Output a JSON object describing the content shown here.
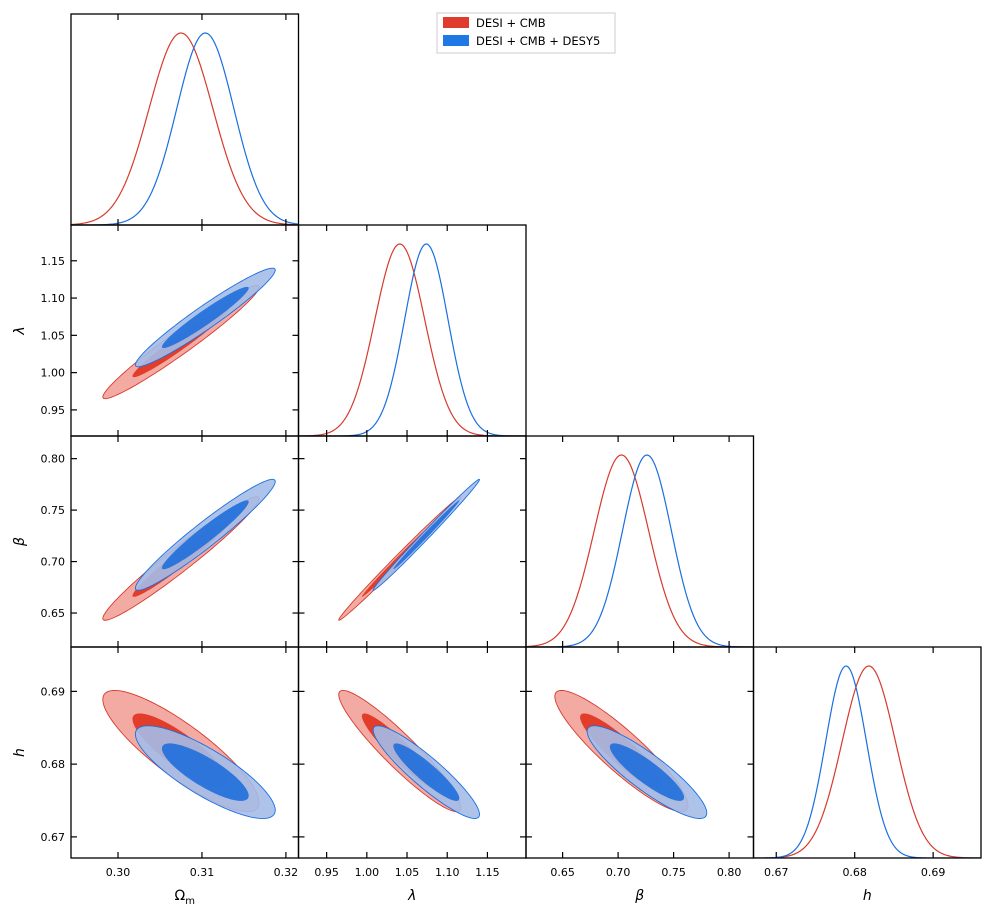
{
  "chart_data": {
    "type": "triangle-corner-plot",
    "parameters": [
      {
        "id": "om",
        "label": "Ω",
        "sub": "m",
        "ticks": [
          "0.30",
          "0.31",
          "0.32"
        ],
        "tick_values": [
          0.3,
          0.31,
          0.32
        ],
        "range": [
          0.2944,
          0.3215
        ]
      },
      {
        "id": "lam",
        "label": "λ",
        "ticks": [
          "0.95",
          "1.00",
          "1.05",
          "1.10",
          "1.15"
        ],
        "tick_values": [
          0.95,
          1.0,
          1.05,
          1.1,
          1.15
        ],
        "range": [
          0.915,
          1.198
        ]
      },
      {
        "id": "beta",
        "label": "β",
        "ticks": [
          "0.65",
          "0.70",
          "0.75",
          "0.80"
        ],
        "tick_values": [
          0.65,
          0.7,
          0.75,
          0.8
        ],
        "range": [
          0.617,
          0.822
        ]
      },
      {
        "id": "h",
        "label": "h",
        "ticks": [
          "0.67",
          "0.68",
          "0.69"
        ],
        "tick_values": [
          0.67,
          0.68,
          0.69
        ],
        "range": [
          0.6671,
          0.6961
        ]
      }
    ],
    "legend": [
      {
        "label": "DESI + CMB",
        "color": "#e03c2e"
      },
      {
        "label": "DESI + CMB + DESY5",
        "color": "#1e78e6"
      }
    ],
    "series": [
      {
        "name": "DESI + CMB",
        "line_color": "#d73a2c",
        "fill_inner": "#e23d2a",
        "fill_outer": "#f3aaa2",
        "mean": {
          "om": 0.3075,
          "lam": 1.041,
          "beta": 0.703,
          "h": 0.6818
        },
        "sigma": {
          "om": 0.0038,
          "lam": 0.031,
          "beta": 0.0245,
          "h": 0.0034
        },
        "corr": [
          [
            0,
            1,
            0.97
          ],
          [
            0,
            2,
            0.97
          ],
          [
            1,
            2,
            0.995
          ],
          [
            0,
            3,
            -0.85
          ],
          [
            1,
            3,
            -0.93
          ],
          [
            2,
            3,
            -0.9
          ]
        ]
      },
      {
        "name": "DESI + CMB + DESY5",
        "line_color": "#1a6fe0",
        "fill_inner": "#1f6fdc",
        "fill_outer": "#a4bde8",
        "mean": {
          "om": 0.3104,
          "lam": 1.074,
          "beta": 0.726,
          "h": 0.6789
        },
        "sigma": {
          "om": 0.0034,
          "lam": 0.027,
          "beta": 0.022,
          "h": 0.0026
        },
        "corr": [
          [
            0,
            1,
            0.96
          ],
          [
            0,
            2,
            0.96
          ],
          [
            1,
            2,
            0.995
          ],
          [
            0,
            3,
            -0.82
          ],
          [
            1,
            3,
            -0.91
          ],
          [
            2,
            3,
            -0.88
          ]
        ]
      }
    ]
  }
}
